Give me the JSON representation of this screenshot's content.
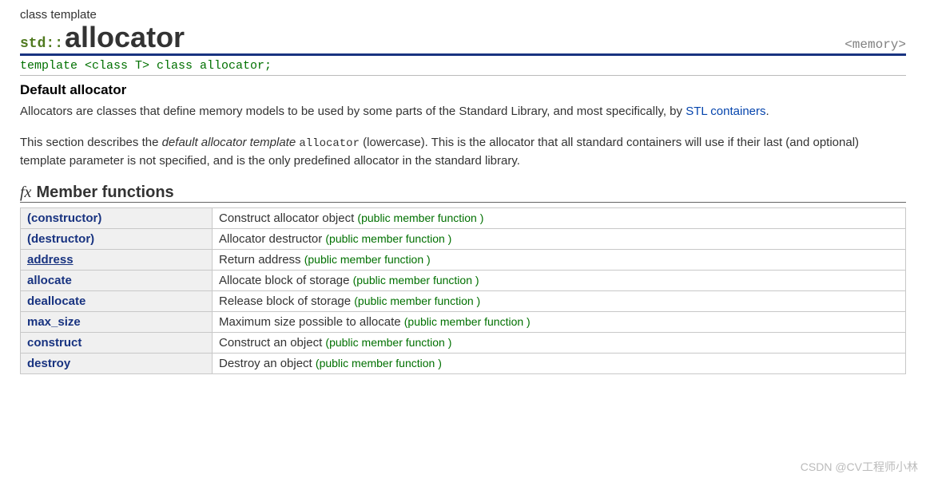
{
  "header": {
    "kind_label": "class template",
    "namespace_prefix": "std::",
    "name": "allocator",
    "header_tag": "<memory>"
  },
  "declaration": "template <class T> class allocator;",
  "summary": {
    "subhead": "Default allocator",
    "para1_pre": "Allocators are classes that define memory models to be used by some parts of the Standard Library, and most specifically, by ",
    "para1_link": "STL containers",
    "para1_post": ".",
    "para2_pre": "This section describes the ",
    "para2_ital": "default allocator template",
    "para2_sp1": " ",
    "para2_mono": "allocator",
    "para2_post": " (lowercase). This is the allocator that all standard containers will use if their last (and optional) template parameter is not specified, and is the only predefined allocator in the standard library."
  },
  "section": {
    "fx": "fx",
    "title": "Member functions"
  },
  "members": {
    "type_label": "(public member function )",
    "rows": [
      {
        "name": "(constructor)",
        "underline": false,
        "desc": "Construct allocator object "
      },
      {
        "name": "(destructor)",
        "underline": false,
        "desc": "Allocator destructor "
      },
      {
        "name": "address",
        "underline": true,
        "desc": "Return address "
      },
      {
        "name": "allocate",
        "underline": false,
        "desc": "Allocate block of storage "
      },
      {
        "name": "deallocate",
        "underline": false,
        "desc": "Release block of storage "
      },
      {
        "name": "max_size",
        "underline": false,
        "desc": "Maximum size possible to allocate "
      },
      {
        "name": "construct",
        "underline": false,
        "desc": "Construct an object "
      },
      {
        "name": "destroy",
        "underline": false,
        "desc": "Destroy an object "
      }
    ]
  },
  "watermark": "CSDN @CV工程师小林"
}
